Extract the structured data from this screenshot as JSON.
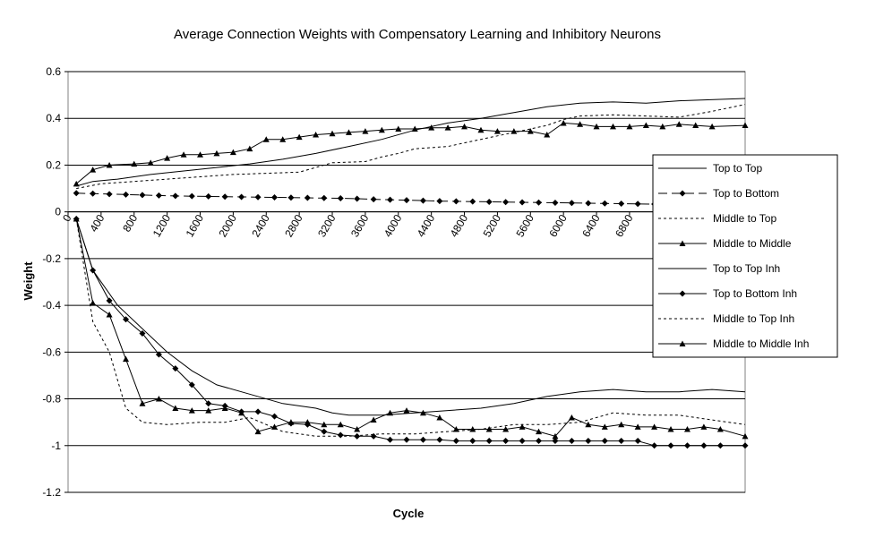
{
  "chart_data": {
    "type": "line",
    "title": "Average Connection Weights with Compensatory Learning and Inhibitory Neurons",
    "xlabel": "Cycle",
    "ylabel": "Weight",
    "ylim": [
      -1.2,
      0.6
    ],
    "xlim": [
      0,
      8200
    ],
    "yticks": [
      "0.6",
      "0.4",
      "0.2",
      "0",
      "-0.2",
      "-0.4",
      "-0.6",
      "-0.8",
      "-1",
      "-1.2"
    ],
    "ytick_values": [
      0.6,
      0.4,
      0.2,
      0,
      -0.2,
      -0.4,
      -0.6,
      -0.8,
      -1,
      -1.2
    ],
    "xticks": [
      "0",
      "400",
      "800",
      "1200",
      "1600",
      "2000",
      "2400",
      "2800",
      "3200",
      "3600",
      "4000",
      "4400",
      "4800",
      "5200",
      "5600",
      "6000",
      "6400",
      "6800"
    ],
    "xtick_values": [
      0,
      400,
      800,
      1200,
      1600,
      2000,
      2400,
      2800,
      3200,
      3600,
      4000,
      4400,
      4800,
      5200,
      5600,
      6000,
      6400,
      6800
    ],
    "grid": "horizontal",
    "legend_position": "right",
    "series": [
      {
        "name": "Top to Top",
        "style": "solid",
        "marker": "none",
        "x": [
          100,
          300,
          600,
          1000,
          1400,
          1800,
          2200,
          2600,
          3000,
          3400,
          3800,
          4200,
          4600,
          5000,
          5400,
          5800,
          6200,
          6600,
          7000,
          7400,
          8200
        ],
        "y": [
          0.11,
          0.13,
          0.14,
          0.16,
          0.175,
          0.19,
          0.205,
          0.225,
          0.25,
          0.28,
          0.31,
          0.35,
          0.38,
          0.4,
          0.425,
          0.45,
          0.465,
          0.47,
          0.465,
          0.475,
          0.485
        ]
      },
      {
        "name": "Top to Bottom",
        "style": "dashed",
        "marker": "diamond",
        "x": [
          100,
          300,
          500,
          700,
          900,
          1100,
          1300,
          1500,
          1700,
          1900,
          2100,
          2300,
          2500,
          2700,
          2900,
          3100,
          3300,
          3500,
          3700,
          3900,
          4100,
          4300,
          4500,
          4700,
          4900,
          5100,
          5300,
          5500,
          5700,
          5900,
          6100,
          6300,
          6500,
          6700,
          6900,
          7100
        ],
        "y": [
          0.08,
          0.078,
          0.076,
          0.074,
          0.072,
          0.07,
          0.068,
          0.067,
          0.066,
          0.065,
          0.064,
          0.063,
          0.062,
          0.061,
          0.06,
          0.059,
          0.058,
          0.056,
          0.054,
          0.052,
          0.05,
          0.048,
          0.046,
          0.045,
          0.044,
          0.043,
          0.042,
          0.041,
          0.04,
          0.039,
          0.038,
          0.037,
          0.036,
          0.035,
          0.034,
          0.033
        ]
      },
      {
        "name": "Middle to Top",
        "style": "dotted",
        "marker": "none",
        "x": [
          100,
          400,
          800,
          1200,
          1600,
          2000,
          2400,
          2800,
          3000,
          3200,
          3600,
          3800,
          4000,
          4200,
          4400,
          4600,
          5000,
          5400,
          5800,
          6000,
          6200,
          6600,
          7000,
          7400,
          7800,
          8200
        ],
        "y": [
          0.1,
          0.12,
          0.13,
          0.14,
          0.15,
          0.16,
          0.165,
          0.17,
          0.19,
          0.21,
          0.215,
          0.235,
          0.25,
          0.27,
          0.275,
          0.28,
          0.31,
          0.34,
          0.37,
          0.395,
          0.41,
          0.415,
          0.41,
          0.405,
          0.43,
          0.46
        ]
      },
      {
        "name": "Middle to Middle",
        "style": "solid",
        "marker": "triangle",
        "x": [
          100,
          300,
          500,
          800,
          1000,
          1200,
          1400,
          1600,
          1800,
          2000,
          2200,
          2400,
          2600,
          2800,
          3000,
          3200,
          3400,
          3600,
          3800,
          4000,
          4200,
          4400,
          4600,
          4800,
          5000,
          5200,
          5400,
          5600,
          5800,
          6000,
          6200,
          6400,
          6600,
          6800,
          7000,
          7200,
          7400,
          7600,
          7800,
          8200
        ],
        "y": [
          0.12,
          0.18,
          0.2,
          0.205,
          0.21,
          0.23,
          0.245,
          0.245,
          0.25,
          0.255,
          0.27,
          0.31,
          0.31,
          0.32,
          0.33,
          0.335,
          0.34,
          0.345,
          0.35,
          0.355,
          0.355,
          0.36,
          0.36,
          0.365,
          0.35,
          0.345,
          0.345,
          0.345,
          0.33,
          0.38,
          0.375,
          0.365,
          0.365,
          0.365,
          0.37,
          0.365,
          0.375,
          0.37,
          0.365,
          0.37
        ]
      },
      {
        "name": "Top to Top Inh",
        "style": "solid",
        "marker": "none",
        "x": [
          100,
          300,
          600,
          900,
          1200,
          1500,
          1800,
          2200,
          2600,
          3000,
          3200,
          3400,
          3800,
          4200,
          4600,
          5000,
          5400,
          5800,
          6200,
          6600,
          7000,
          7400,
          7800,
          8200
        ],
        "y": [
          -0.03,
          -0.25,
          -0.4,
          -0.5,
          -0.6,
          -0.68,
          -0.74,
          -0.78,
          -0.82,
          -0.84,
          -0.86,
          -0.87,
          -0.87,
          -0.86,
          -0.85,
          -0.84,
          -0.82,
          -0.79,
          -0.77,
          -0.76,
          -0.77,
          -0.77,
          -0.76,
          -0.77
        ]
      },
      {
        "name": "Top to Bottom Inh",
        "style": "solid",
        "marker": "diamond",
        "x": [
          100,
          300,
          500,
          700,
          900,
          1100,
          1300,
          1500,
          1700,
          1900,
          2100,
          2300,
          2500,
          2700,
          2900,
          3100,
          3300,
          3500,
          3700,
          3900,
          4100,
          4300,
          4500,
          4700,
          4900,
          5100,
          5300,
          5500,
          5700,
          5900,
          6100,
          6300,
          6500,
          6700,
          6900,
          7100,
          7300,
          7500,
          7700,
          7900,
          8200
        ],
        "y": [
          -0.03,
          -0.25,
          -0.38,
          -0.46,
          -0.52,
          -0.61,
          -0.67,
          -0.74,
          -0.82,
          -0.83,
          -0.855,
          -0.855,
          -0.875,
          -0.905,
          -0.91,
          -0.94,
          -0.955,
          -0.96,
          -0.96,
          -0.975,
          -0.975,
          -0.975,
          -0.975,
          -0.98,
          -0.98,
          -0.98,
          -0.98,
          -0.98,
          -0.98,
          -0.98,
          -0.98,
          -0.98,
          -0.98,
          -0.98,
          -0.98,
          -1.0,
          -1.0,
          -1.0,
          -1.0,
          -1.0,
          -1.0
        ]
      },
      {
        "name": "Middle to Top Inh",
        "style": "dotted",
        "marker": "none",
        "x": [
          100,
          300,
          500,
          700,
          900,
          1200,
          1600,
          1900,
          2200,
          2600,
          3000,
          3400,
          3800,
          4200,
          4600,
          5000,
          5400,
          5800,
          6200,
          6600,
          7000,
          7400,
          7800,
          8200
        ],
        "y": [
          -0.03,
          -0.47,
          -0.6,
          -0.84,
          -0.9,
          -0.91,
          -0.9,
          -0.9,
          -0.88,
          -0.94,
          -0.96,
          -0.96,
          -0.95,
          -0.95,
          -0.94,
          -0.93,
          -0.91,
          -0.91,
          -0.9,
          -0.86,
          -0.87,
          -0.87,
          -0.89,
          -0.91
        ]
      },
      {
        "name": "Middle to Middle Inh",
        "style": "solid",
        "marker": "triangle",
        "x": [
          100,
          300,
          500,
          700,
          900,
          1100,
          1300,
          1500,
          1700,
          1900,
          2100,
          2300,
          2500,
          2700,
          2900,
          3100,
          3300,
          3500,
          3700,
          3900,
          4100,
          4300,
          4500,
          4700,
          4900,
          5100,
          5300,
          5500,
          5700,
          5900,
          6100,
          6300,
          6500,
          6700,
          6900,
          7100,
          7300,
          7500,
          7700,
          7900,
          8200
        ],
        "y": [
          -0.03,
          -0.39,
          -0.44,
          -0.63,
          -0.82,
          -0.8,
          -0.84,
          -0.85,
          -0.85,
          -0.84,
          -0.86,
          -0.94,
          -0.92,
          -0.9,
          -0.9,
          -0.91,
          -0.91,
          -0.93,
          -0.89,
          -0.86,
          -0.85,
          -0.86,
          -0.88,
          -0.93,
          -0.93,
          -0.93,
          -0.93,
          -0.92,
          -0.94,
          -0.96,
          -0.88,
          -0.91,
          -0.92,
          -0.91,
          -0.92,
          -0.92,
          -0.93,
          -0.93,
          -0.92,
          -0.93,
          -0.96
        ]
      }
    ]
  }
}
